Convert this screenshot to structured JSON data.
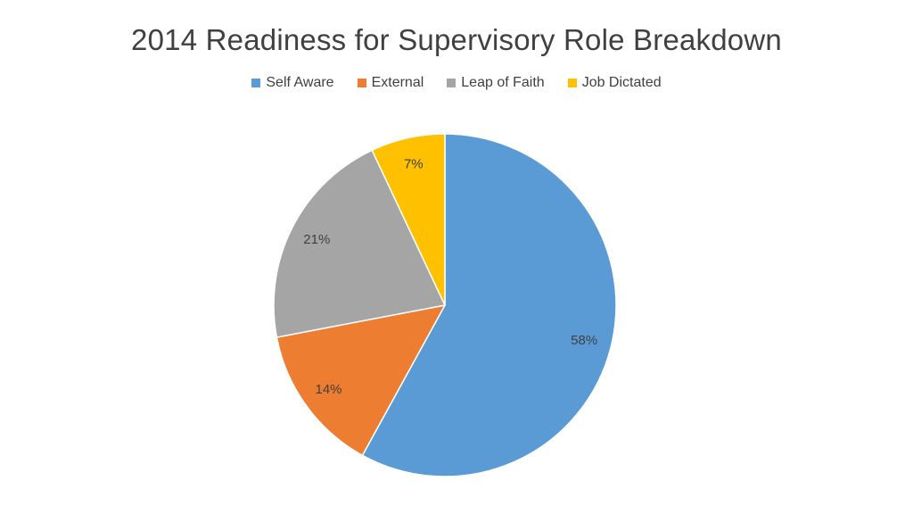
{
  "chart_data": {
    "type": "pie",
    "title": "2014 Readiness for Supervisory Role Breakdown",
    "legend_position": "top",
    "categories": [
      "Self Aware",
      "External",
      "Leap of Faith",
      "Job Dictated"
    ],
    "values": [
      58,
      14,
      21,
      7
    ],
    "data_labels": [
      "58%",
      "14%",
      "21%",
      "7%"
    ],
    "colors": [
      "#5b9bd5",
      "#ed7d31",
      "#a5a5a5",
      "#ffc000"
    ]
  }
}
